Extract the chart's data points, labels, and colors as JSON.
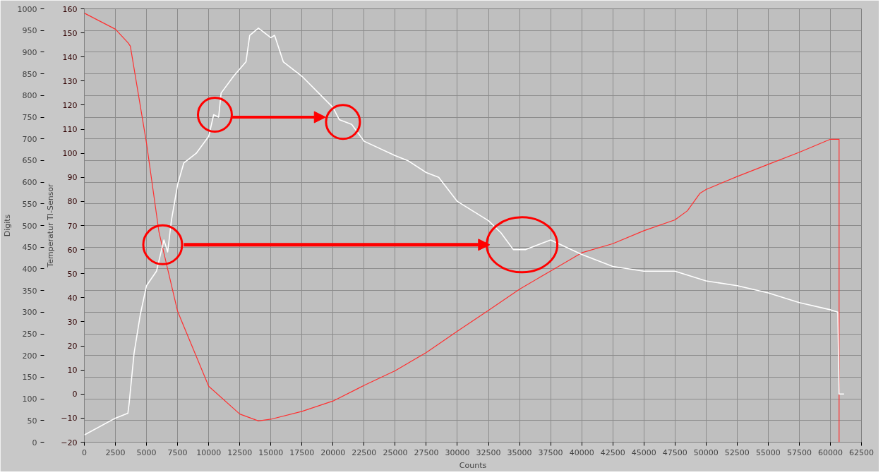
{
  "chart_data": {
    "type": "line",
    "xlabel": "Counts",
    "ylabel": "Digits",
    "y2label": "Temperatur TI-Sensor",
    "xlim": [
      0,
      62500
    ],
    "xticks": [
      0,
      2500,
      5000,
      7500,
      10000,
      12500,
      15000,
      17500,
      20000,
      22500,
      25000,
      27500,
      30000,
      32500,
      35000,
      37500,
      40000,
      42500,
      45000,
      47500,
      50000,
      52500,
      55000,
      57500,
      60000,
      62500
    ],
    "ylim": [
      0,
      1000
    ],
    "yticks": [
      0,
      50,
      100,
      150,
      200,
      250,
      300,
      350,
      400,
      450,
      500,
      550,
      600,
      650,
      700,
      750,
      800,
      850,
      900,
      950,
      1000
    ],
    "y2lim": [
      -20,
      160
    ],
    "y2ticks": [
      -20,
      -10,
      0,
      10,
      20,
      30,
      40,
      50,
      60,
      70,
      80,
      90,
      100,
      110,
      120,
      130,
      140,
      150,
      160
    ],
    "grid": true,
    "series": [
      {
        "color": "#ff3030",
        "x": [
          0,
          2500,
          3500,
          3700,
          5000,
          6000,
          7500,
          10000,
          12500,
          14000,
          15000,
          17500,
          20000,
          22500,
          25000,
          27500,
          30000,
          32500,
          35000,
          37500,
          40000,
          42500,
          45000,
          47500,
          48500,
          49500,
          50000,
          52500,
          55000,
          57500,
          60000,
          60700,
          60700
        ],
        "values": [
          990,
          953,
          922,
          914,
          690,
          485,
          302,
          129,
          65,
          49,
          53,
          71,
          95,
          131,
          165,
          207,
          256,
          304,
          353,
          395,
          437,
          458,
          488,
          513,
          534,
          574,
          583,
          613,
          641,
          669,
          699,
          699,
          0
        ]
      },
      {
        "color": "#ffffff",
        "axis": "y2",
        "x": [
          0,
          2500,
          3500,
          3600,
          4000,
          4500,
          5000,
          5800,
          6400,
          6700,
          7000,
          7500,
          8000,
          9000,
          10000,
          10400,
          10800,
          11000,
          12000,
          13000,
          13300,
          14000,
          15000,
          15300,
          16000,
          17500,
          20000,
          20500,
          21500,
          22500,
          25000,
          26000,
          27500,
          28500,
          30000,
          32500,
          33500,
          34500,
          35500,
          37500,
          40000,
          42500,
          45000,
          47500,
          50000,
          52500,
          55000,
          57500,
          60000,
          60600,
          60700,
          61100
        ],
        "values": [
          -17,
          -10,
          -8,
          -4,
          17,
          33,
          45,
          51,
          64,
          59,
          72,
          87,
          96,
          100,
          107,
          116,
          115,
          125,
          132,
          138,
          149,
          152,
          148,
          149,
          138,
          132,
          119,
          114,
          112,
          105,
          99,
          97,
          92,
          90,
          80,
          72,
          67,
          60,
          60,
          64,
          58,
          53,
          51,
          51,
          47,
          45,
          42,
          38,
          35,
          34,
          0,
          0
        ]
      }
    ]
  }
}
